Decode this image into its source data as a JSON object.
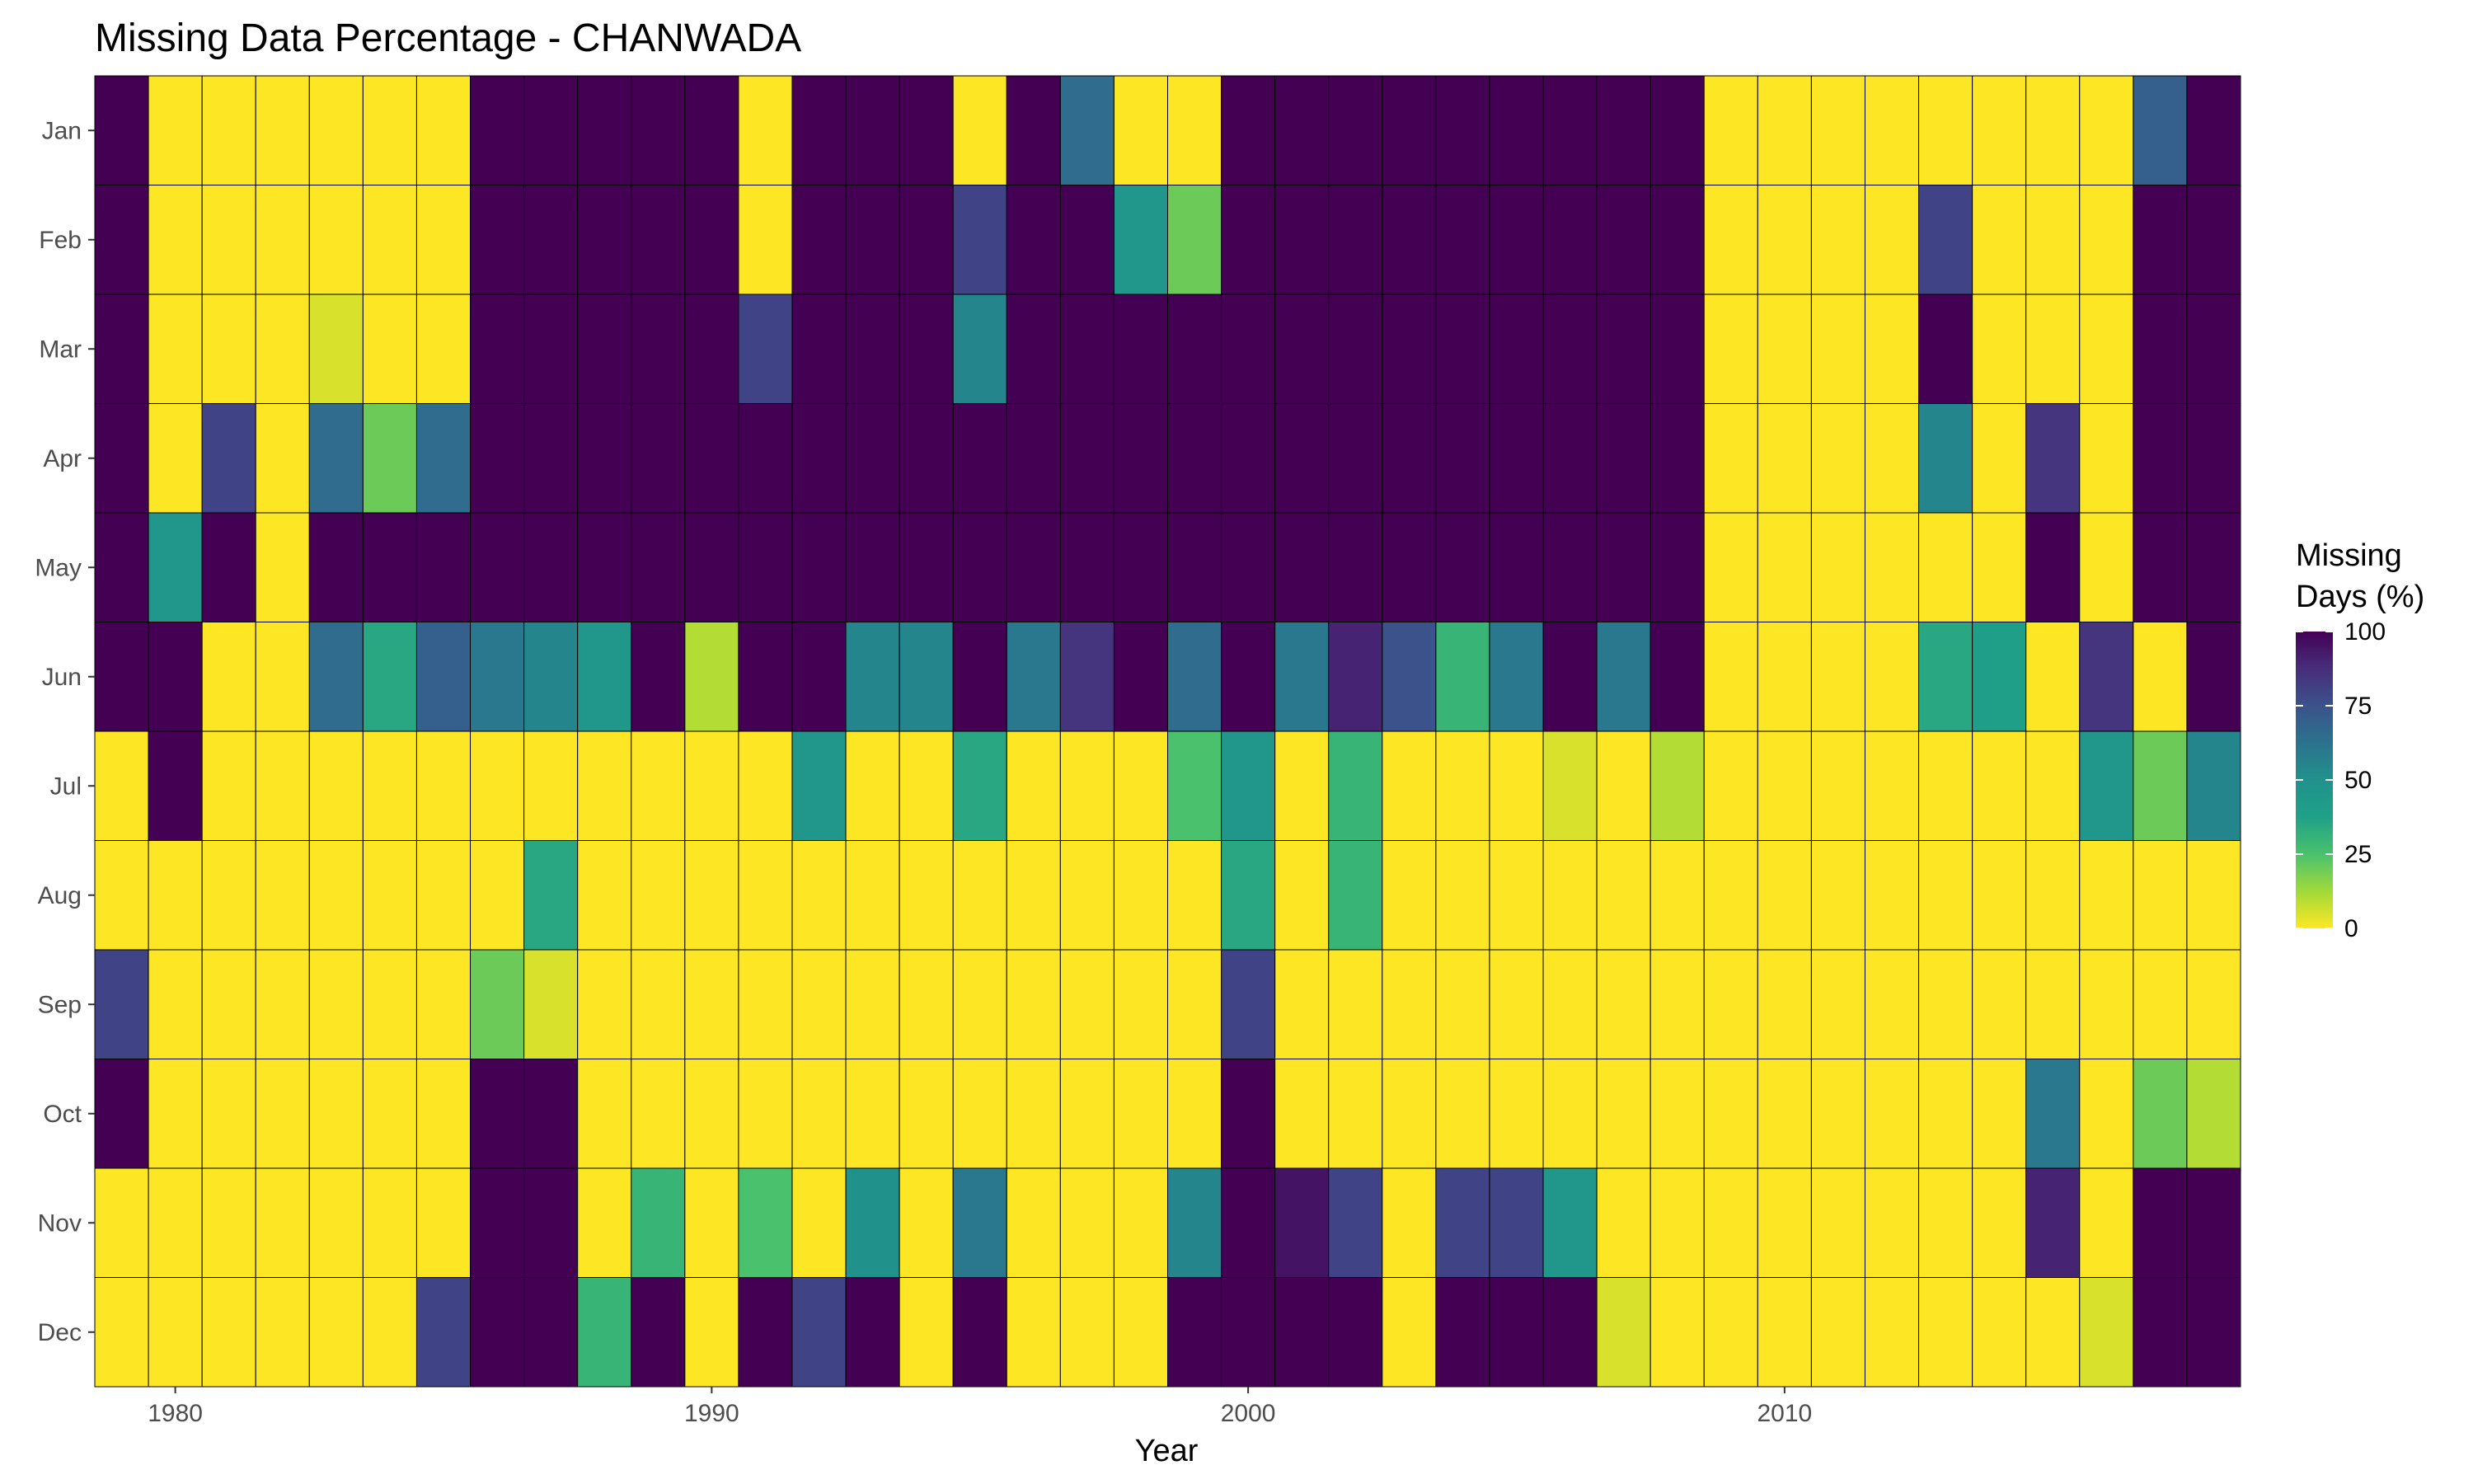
{
  "chart_data": {
    "type": "heatmap",
    "title": "Missing Data Percentage - CHANWADA",
    "xlabel": "Year",
    "ylabel": "",
    "legend": {
      "title_lines": [
        "Missing",
        "Days (%)"
      ],
      "ticks": [
        0,
        25,
        50,
        75,
        100
      ],
      "range": [
        0,
        100
      ],
      "colormap": "viridis (reversed)",
      "placement": "right"
    },
    "x_ticks": [
      1980,
      1990,
      2000,
      2010
    ],
    "years": [
      1979,
      1980,
      1981,
      1982,
      1983,
      1984,
      1985,
      1986,
      1987,
      1988,
      1989,
      1990,
      1991,
      1992,
      1993,
      1994,
      1995,
      1996,
      1997,
      1998,
      1999,
      2000,
      2001,
      2002,
      2003,
      2004,
      2005,
      2006,
      2007,
      2008,
      2009,
      2010,
      2011,
      2012,
      2013,
      2014,
      2015,
      2016,
      2017,
      2018
    ],
    "months": [
      "Jan",
      "Feb",
      "Mar",
      "Apr",
      "May",
      "Jun",
      "Jul",
      "Aug",
      "Sep",
      "Oct",
      "Nov",
      "Dec"
    ],
    "values": [
      [
        100,
        0,
        0,
        0,
        0,
        0,
        0,
        100,
        100,
        100,
        100,
        100,
        0,
        100,
        100,
        100,
        0,
        100,
        65,
        0,
        0,
        100,
        100,
        100,
        100,
        100,
        100,
        100,
        100,
        100,
        0,
        0,
        0,
        0,
        0,
        0,
        0,
        0,
        70,
        100
      ],
      [
        100,
        0,
        0,
        0,
        0,
        0,
        0,
        100,
        100,
        100,
        100,
        100,
        0,
        100,
        100,
        100,
        80,
        100,
        100,
        45,
        20,
        100,
        100,
        100,
        100,
        100,
        100,
        100,
        100,
        100,
        0,
        0,
        0,
        0,
        80,
        0,
        0,
        0,
        100,
        100
      ],
      [
        100,
        0,
        0,
        0,
        5,
        0,
        0,
        100,
        100,
        100,
        100,
        100,
        80,
        100,
        100,
        100,
        55,
        100,
        100,
        100,
        100,
        100,
        100,
        100,
        100,
        100,
        100,
        100,
        100,
        100,
        0,
        0,
        0,
        0,
        100,
        0,
        0,
        0,
        100,
        100
      ],
      [
        100,
        0,
        80,
        0,
        65,
        20,
        65,
        100,
        100,
        100,
        100,
        100,
        100,
        100,
        100,
        100,
        100,
        100,
        100,
        100,
        100,
        100,
        100,
        100,
        100,
        100,
        100,
        100,
        100,
        100,
        0,
        0,
        0,
        0,
        55,
        0,
        85,
        0,
        100,
        100
      ],
      [
        100,
        45,
        100,
        0,
        100,
        100,
        100,
        100,
        100,
        100,
        100,
        100,
        100,
        100,
        100,
        100,
        100,
        100,
        100,
        100,
        100,
        100,
        100,
        100,
        100,
        100,
        100,
        100,
        100,
        100,
        0,
        0,
        0,
        0,
        0,
        0,
        100,
        0,
        100,
        100
      ],
      [
        100,
        100,
        0,
        0,
        65,
        35,
        70,
        60,
        55,
        45,
        100,
        10,
        100,
        100,
        55,
        55,
        100,
        60,
        85,
        100,
        65,
        100,
        60,
        90,
        75,
        30,
        60,
        100,
        60,
        100,
        0,
        0,
        0,
        0,
        35,
        40,
        0,
        85,
        0,
        100
      ],
      [
        0,
        100,
        0,
        0,
        0,
        0,
        0,
        0,
        0,
        0,
        0,
        0,
        0,
        45,
        0,
        0,
        35,
        0,
        0,
        0,
        25,
        45,
        0,
        30,
        0,
        0,
        0,
        5,
        0,
        10,
        0,
        0,
        0,
        0,
        0,
        0,
        0,
        45,
        20,
        55
      ],
      [
        0,
        0,
        0,
        0,
        0,
        0,
        0,
        0,
        35,
        0,
        0,
        0,
        0,
        0,
        0,
        0,
        0,
        0,
        0,
        0,
        0,
        35,
        0,
        30,
        0,
        0,
        0,
        0,
        0,
        0,
        0,
        0,
        0,
        0,
        0,
        0,
        0,
        0,
        0,
        0
      ],
      [
        80,
        0,
        0,
        0,
        0,
        0,
        0,
        20,
        5,
        0,
        0,
        0,
        0,
        0,
        0,
        0,
        0,
        0,
        0,
        0,
        0,
        80,
        0,
        0,
        0,
        0,
        0,
        0,
        0,
        0,
        0,
        0,
        0,
        0,
        0,
        0,
        0,
        0,
        0,
        0
      ],
      [
        100,
        0,
        0,
        0,
        0,
        0,
        0,
        100,
        100,
        0,
        0,
        0,
        0,
        0,
        0,
        0,
        0,
        0,
        0,
        0,
        0,
        100,
        0,
        0,
        0,
        0,
        0,
        0,
        0,
        0,
        0,
        0,
        0,
        0,
        0,
        0,
        60,
        0,
        20,
        10
      ],
      [
        0,
        0,
        0,
        0,
        0,
        0,
        0,
        100,
        100,
        0,
        30,
        0,
        25,
        0,
        50,
        0,
        60,
        0,
        0,
        0,
        55,
        100,
        95,
        80,
        0,
        80,
        80,
        45,
        0,
        0,
        0,
        0,
        0,
        0,
        0,
        0,
        90,
        0,
        100,
        100
      ],
      [
        0,
        0,
        0,
        0,
        0,
        0,
        80,
        100,
        100,
        30,
        100,
        0,
        100,
        80,
        100,
        0,
        100,
        0,
        0,
        0,
        100,
        100,
        100,
        100,
        0,
        100,
        100,
        100,
        5,
        0,
        0,
        0,
        0,
        0,
        0,
        0,
        0,
        5,
        100,
        100
      ]
    ]
  }
}
